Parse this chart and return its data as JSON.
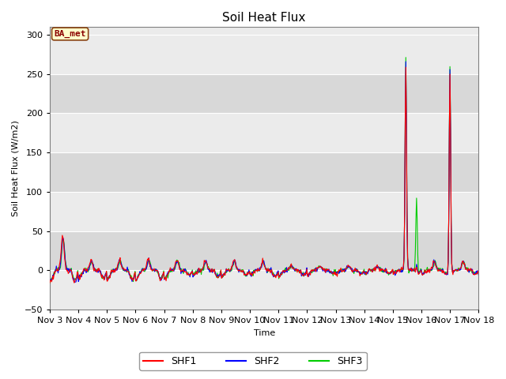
{
  "title": "Soil Heat Flux",
  "ylabel": "Soil Heat Flux (W/m2)",
  "xlabel": "Time",
  "ylim": [
    -50,
    310
  ],
  "yticks": [
    -50,
    0,
    50,
    100,
    150,
    200,
    250,
    300
  ],
  "colors": {
    "SHF1": "#ff0000",
    "SHF2": "#0000ff",
    "SHF3": "#00cc00"
  },
  "annotation_text": "BA_met",
  "annotation_color": "#8b0000",
  "annotation_bg": "#ffffcc",
  "annotation_border": "#8b4513",
  "plot_bg_light": "#ebebeb",
  "plot_bg_dark": "#d8d8d8",
  "fig_bg": "#ffffff",
  "x_start_day": 3,
  "x_end_day": 18,
  "x_ticks": [
    3,
    4,
    5,
    6,
    7,
    8,
    9,
    10,
    11,
    12,
    13,
    14,
    15,
    16,
    17,
    18
  ],
  "x_tick_labels": [
    "Nov 3",
    "Nov 4",
    "Nov 5",
    "Nov 6",
    "Nov 7",
    "Nov 8",
    "Nov 9",
    "Nov 10",
    "Nov 11",
    "Nov 12",
    "Nov 13",
    "Nov 14",
    "Nov 15",
    "Nov 16",
    "Nov 17",
    "Nov 18"
  ]
}
